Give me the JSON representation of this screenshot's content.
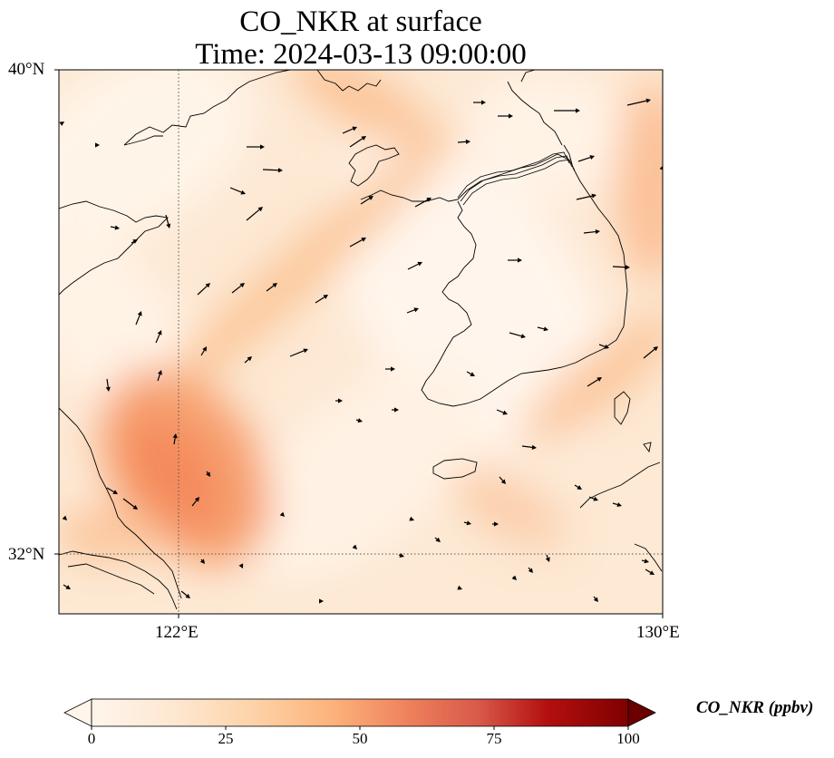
{
  "title_line1": "CO_NKR at surface",
  "title_line2": "Time: 2024-03-13 09:00:00",
  "latitude_ticks": [
    "40°N",
    "32°N"
  ],
  "longitude_ticks": [
    "122°E",
    "130°E"
  ],
  "colorbar": {
    "label": "CO_NKR (ppbv)",
    "ticks": [
      "0",
      "25",
      "50",
      "75",
      "100"
    ],
    "min": 0,
    "max": 100,
    "extend": "both",
    "colormap": "Oranges",
    "colors": [
      "#fff5eb",
      "#fee6ce",
      "#fdd0a2",
      "#fdae6b",
      "#fd8d3c",
      "#f16913",
      "#d94801",
      "#a50000",
      "#6b0000"
    ]
  },
  "map": {
    "extent_lon": [
      120,
      130
    ],
    "extent_lat": [
      31,
      40
    ],
    "gridlines": "dotted at 122°E and 32°N",
    "features": [
      "coastlines",
      "wind vectors"
    ]
  }
}
